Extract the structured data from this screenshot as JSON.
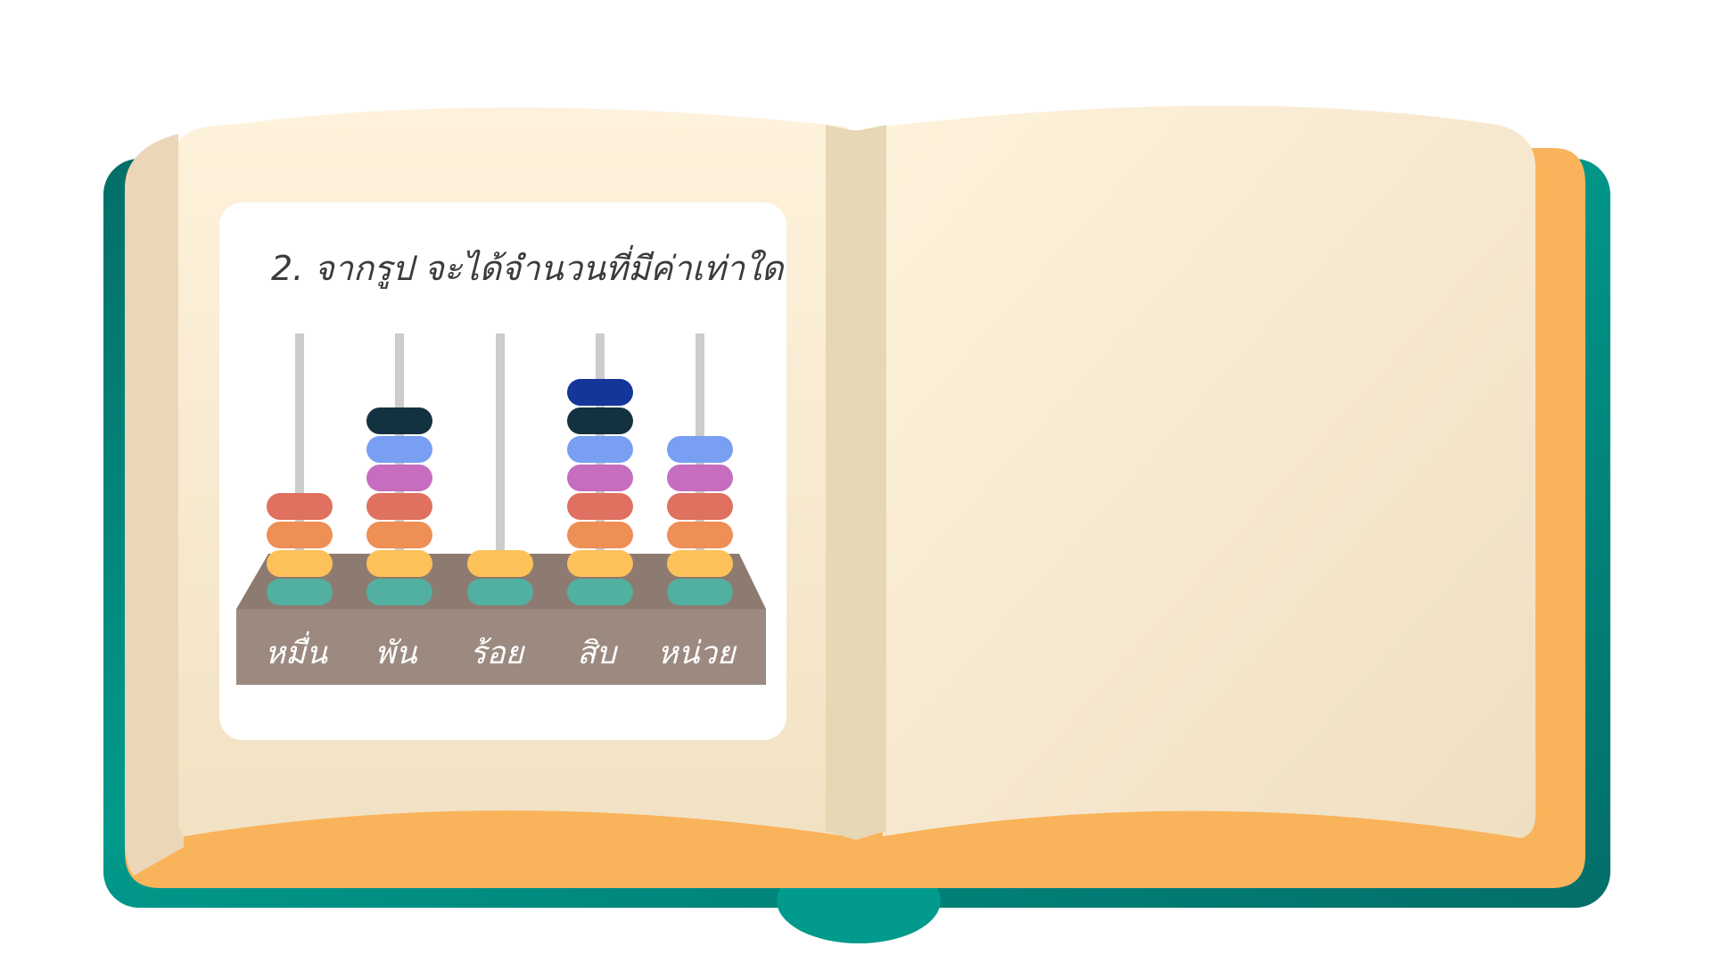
{
  "question": {
    "title": "2. จากรูป  จะได้จำนวนที่มีค่าเท่าใด"
  },
  "abacus": {
    "columns": [
      {
        "label": "หมื่น",
        "beads": 4
      },
      {
        "label": "พัน",
        "beads": 7
      },
      {
        "label": "ร้อย",
        "beads": 2
      },
      {
        "label": "สิบ",
        "beads": 8
      },
      {
        "label": "หน่วย",
        "beads": 6
      }
    ],
    "bead_colors": [
      "#52b0a0",
      "#fcc159",
      "#ee8f55",
      "#e07060",
      "#c66dbf",
      "#789ff2",
      "#14313f",
      "#14369a"
    ]
  },
  "colors": {
    "cover": "#019a8c",
    "cover_dark": "#036e68",
    "page_edge": "#f9b35a",
    "page": "#fdf0d9",
    "spine": "#e8d7b4",
    "abacus_base_top": "#8d7b71",
    "abacus_base_front": "#9c8a80",
    "rod": "#cccccc"
  }
}
